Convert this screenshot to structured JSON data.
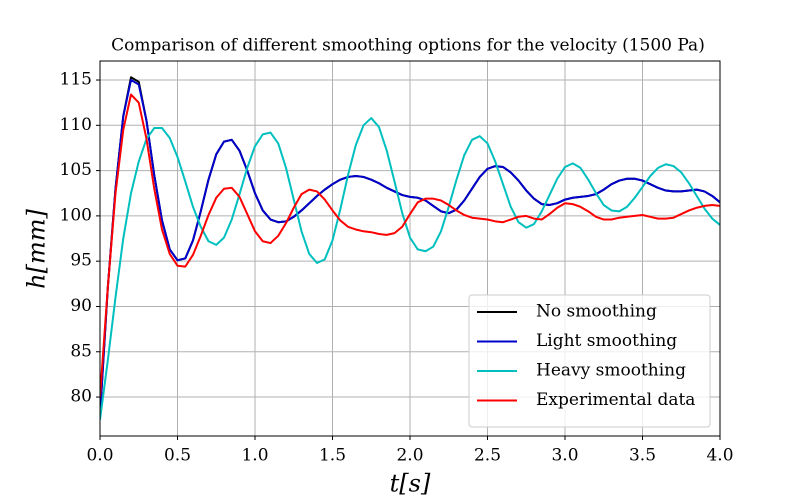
{
  "chart_data": {
    "type": "line",
    "title": "Comparison of different smoothing options for the velocity (1500 Pa)",
    "x_label": "t[s]",
    "y_label": "h[mm]",
    "xlim": [
      0,
      4
    ],
    "ylim": [
      75.7,
      117.1
    ],
    "xticks": [
      {
        "value": 0,
        "label": "0.0"
      },
      0.5,
      {
        "value": 1,
        "label": "1.0"
      },
      1.5,
      {
        "value": 2,
        "label": "2.0"
      },
      2.5,
      {
        "value": 3,
        "label": "3.0"
      },
      3.5,
      {
        "value": 4,
        "label": "4.0"
      }
    ],
    "yticks": [
      80,
      85,
      90,
      95,
      100,
      105,
      110,
      115
    ],
    "grid": true,
    "legend": "lower right",
    "x": [
      0,
      0.05,
      0.1,
      0.15,
      0.2,
      0.25,
      0.3,
      0.35,
      0.4,
      0.45,
      0.5,
      0.55,
      0.6,
      0.65,
      0.7,
      0.75,
      0.8,
      0.85,
      0.9,
      0.95,
      1,
      1.05,
      1.1,
      1.15,
      1.2,
      1.25,
      1.3,
      1.35,
      1.4,
      1.45,
      1.5,
      1.55,
      1.6,
      1.65,
      1.7,
      1.75,
      1.8,
      1.85,
      1.9,
      1.95,
      2,
      2.05,
      2.1,
      2.15,
      2.2,
      2.25,
      2.3,
      2.35,
      2.4,
      2.45,
      2.5,
      2.55,
      2.6,
      2.65,
      2.7,
      2.75,
      2.8,
      2.85,
      2.9,
      2.95,
      3,
      3.05,
      3.1,
      3.15,
      3.2,
      3.25,
      3.3,
      3.35,
      3.4,
      3.45,
      3.5,
      3.55,
      3.6,
      3.65,
      3.7,
      3.75,
      3.8,
      3.85,
      3.9,
      3.95,
      4
    ],
    "series": [
      {
        "name": "No smoothing",
        "color": "#000000",
        "values": [
          78,
          92,
          103,
          111,
          115.3,
          114.8,
          110.5,
          104.5,
          99.5,
          96.3,
          95.1,
          95.3,
          97.3,
          100.5,
          104,
          106.8,
          108.2,
          108.4,
          107.2,
          105,
          102.5,
          100.6,
          99.6,
          99.3,
          99.4,
          99.9,
          100.6,
          101.4,
          102.2,
          102.9,
          103.5,
          104,
          104.3,
          104.4,
          104.3,
          104,
          103.6,
          103.1,
          102.7,
          102.3,
          102.1,
          102,
          101.7,
          101.1,
          100.5,
          100.3,
          100.7,
          101.7,
          103,
          104.3,
          105.2,
          105.5,
          105.4,
          104.8,
          103.9,
          102.8,
          101.9,
          101.3,
          101.2,
          101.4,
          101.8,
          102,
          102.1,
          102.2,
          102.4,
          102.9,
          103.5,
          103.9,
          104.1,
          104.1,
          103.9,
          103.5,
          103.1,
          102.8,
          102.7,
          102.7,
          102.8,
          102.9,
          102.7,
          102.2,
          101.5
        ]
      },
      {
        "name": "Light smoothing",
        "color": "#0000cc",
        "values": [
          78,
          92,
          103,
          111,
          115,
          114.5,
          110.5,
          104.5,
          99.5,
          96.3,
          95.1,
          95.3,
          97.3,
          100.5,
          104,
          106.8,
          108.2,
          108.4,
          107.2,
          105,
          102.5,
          100.6,
          99.6,
          99.3,
          99.4,
          99.9,
          100.6,
          101.4,
          102.2,
          102.9,
          103.5,
          104,
          104.3,
          104.4,
          104.3,
          104,
          103.6,
          103.1,
          102.7,
          102.3,
          102.1,
          102,
          101.7,
          101.1,
          100.5,
          100.3,
          100.7,
          101.7,
          103,
          104.3,
          105.2,
          105.5,
          105.4,
          104.8,
          103.9,
          102.8,
          101.9,
          101.3,
          101.2,
          101.4,
          101.8,
          102,
          102.1,
          102.2,
          102.4,
          102.9,
          103.5,
          103.9,
          104.1,
          104.1,
          103.9,
          103.5,
          103.1,
          102.8,
          102.7,
          102.7,
          102.8,
          102.9,
          102.7,
          102.2,
          101.5
        ]
      },
      {
        "name": "Heavy smoothing",
        "color": "#00bfbf",
        "values": [
          77.5,
          84,
          91,
          97.5,
          102.5,
          106,
          108.5,
          109.7,
          109.7,
          108.6,
          106.5,
          103.8,
          101,
          98.8,
          97.2,
          96.8,
          97.6,
          99.6,
          102.4,
          105.3,
          107.7,
          109,
          109.2,
          108,
          105.3,
          101.8,
          98.3,
          95.8,
          94.8,
          95.2,
          97.3,
          100.7,
          104.5,
          107.8,
          110,
          110.8,
          109.8,
          107.2,
          103.8,
          100.3,
          97.6,
          96.3,
          96.1,
          96.6,
          98.3,
          101,
          104,
          106.7,
          108.4,
          108.8,
          108,
          106,
          103.5,
          101,
          99.3,
          98.7,
          99.1,
          100.5,
          102.3,
          104.1,
          105.4,
          105.8,
          105.3,
          104,
          102.5,
          101.2,
          100.6,
          100.5,
          101,
          102,
          103.2,
          104.4,
          105.3,
          105.7,
          105.5,
          104.8,
          103.6,
          102.2,
          100.8,
          99.7,
          99
        ]
      },
      {
        "name": "Experimental data",
        "color": "#ff0000",
        "values": [
          80,
          92,
          102.5,
          109.5,
          113.4,
          112.5,
          108.5,
          103,
          98.5,
          95.8,
          94.5,
          94.4,
          95.7,
          97.8,
          100.1,
          102,
          103,
          103.1,
          102.1,
          100.2,
          98.3,
          97.2,
          97,
          97.8,
          99.2,
          100.9,
          102.4,
          102.9,
          102.7,
          101.8,
          100.6,
          99.5,
          98.8,
          98.5,
          98.3,
          98.2,
          98,
          97.9,
          98.1,
          98.8,
          100.2,
          101.5,
          101.9,
          101.9,
          101.7,
          101.2,
          100.6,
          100.1,
          99.8,
          99.7,
          99.6,
          99.4,
          99.3,
          99.6,
          99.9,
          100,
          99.7,
          99.6,
          100.2,
          100.9,
          101.4,
          101.3,
          101,
          100.5,
          99.9,
          99.6,
          99.6,
          99.8,
          99.9,
          100,
          100.1,
          99.9,
          99.7,
          99.7,
          99.8,
          100.2,
          100.6,
          100.9,
          101.1,
          101.2,
          101.1
        ]
      }
    ]
  }
}
